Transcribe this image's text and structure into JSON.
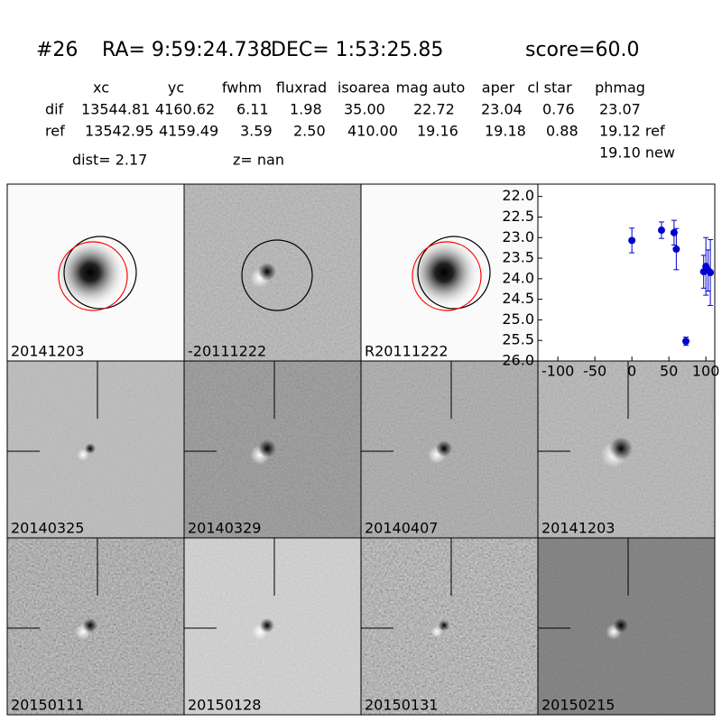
{
  "header": {
    "id": "#26",
    "ra": "RA= 9:59:24.738",
    "dec": "DEC= 1:53:25.85",
    "score": "score=60.0"
  },
  "table": {
    "columns": [
      "xc",
      "yc",
      "fwhm",
      "fluxrad",
      "isoarea",
      "mag auto",
      "aper",
      "cl star",
      "phmag"
    ],
    "rows": [
      [
        "dif",
        "13544.81",
        "4160.62",
        "6.11",
        "1.98",
        "35.00",
        "22.72",
        "23.04",
        "0.76",
        "23.07"
      ],
      [
        "ref",
        "13542.95",
        "4159.49",
        "3.59",
        "2.50",
        "410.00",
        "19.16",
        "19.18",
        "0.88",
        "19.12 ref"
      ]
    ],
    "extra": "19.10 new"
  },
  "dist": "dist=  2.17",
  "z": "z=   nan",
  "stamps": [
    {
      "label": "20141203"
    },
    {
      "label": "-20111222"
    },
    {
      "label": "R20111222"
    },
    {
      "label": "20140325"
    },
    {
      "label": "20140329"
    },
    {
      "label": "20140407"
    },
    {
      "label": "20141203",
      "color": "#ff0000"
    },
    {
      "label": "20150111"
    },
    {
      "label": "20150128"
    },
    {
      "label": "20150131"
    },
    {
      "label": "20150215"
    }
  ],
  "chart_data": {
    "type": "scatter",
    "xlim": [
      -127,
      112
    ],
    "xticks": [
      -100,
      -50,
      0,
      50,
      100
    ],
    "ylim": [
      21.7,
      26.0
    ],
    "invert_y": true,
    "yticks": [
      {
        "value": 22,
        "label": "22.0"
      },
      22.5,
      {
        "value": 23,
        "label": "23.0"
      },
      23.5,
      {
        "value": 24,
        "label": "24.0"
      },
      24.5,
      {
        "value": 25,
        "label": "25.0"
      },
      25.5,
      {
        "value": 26,
        "label": "26.0"
      }
    ],
    "series": [
      {
        "color": "#0000cc",
        "x": [
          0,
          40,
          57,
          60,
          73,
          97,
          100,
          103,
          106
        ],
        "values": [
          23.07,
          22.82,
          22.88,
          23.28,
          25.52,
          23.83,
          23.7,
          23.8,
          23.85
        ],
        "errors": [
          0.3,
          0.2,
          0.3,
          0.5,
          0.1,
          0.4,
          0.7,
          0.5,
          0.8
        ]
      }
    ]
  }
}
